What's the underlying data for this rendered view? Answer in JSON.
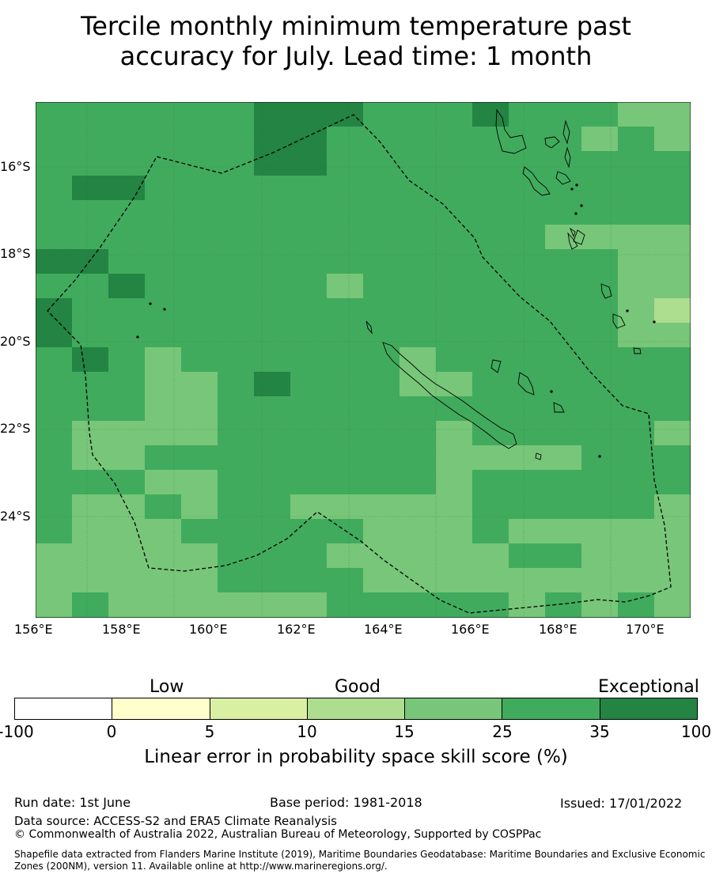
{
  "title_line1": "Tercile monthly minimum temperature past",
  "title_line2": "accuracy for July. Lead time: 1 month",
  "map": {
    "lat_labels": [
      "16°S",
      "18°S",
      "20°S",
      "22°S",
      "24°S"
    ],
    "lon_labels": [
      "156°E",
      "158°E",
      "160°E",
      "162°E",
      "164°E",
      "166°E",
      "168°E",
      "170°E"
    ],
    "colors": {
      "c0": "#ffffcc",
      "c5": "#d9f0a3",
      "c10": "#addd8e",
      "c15": "#78c679",
      "c25": "#41ab5d",
      "c35": "#238443"
    }
  },
  "colorbar": {
    "category_low": "Low",
    "category_good": "Good",
    "category_exceptional": "Exceptional",
    "ticks": [
      "-100",
      "0",
      "5",
      "10",
      "15",
      "25",
      "35",
      "100"
    ],
    "colors": [
      "#ffffff",
      "#ffffcc",
      "#d9f0a3",
      "#addd8e",
      "#78c679",
      "#41ab5d",
      "#238443"
    ],
    "label": "Linear error in probability space skill score (%)"
  },
  "footer": {
    "run_date": "Run date: 1st June",
    "base_period": "Base period: 1981-2018",
    "issued": "Issued: 17/01/2022",
    "data_source": "Data source: ACCESS-S2 and ERA5 Climate Reanalysis",
    "copyright": "© Commonwealth of Australia 2022, Australian Bureau of Meteorology, Supported by COSPPac",
    "shapefile_1": "Shapefile data extracted from Flanders Marine Institute (2019), Maritime Boundaries Geodatabase: Maritime Boundaries and Exclusive Economic",
    "shapefile_2": "Zones (200NM), version 11. Available online at http://www.marineregions.org/."
  }
}
